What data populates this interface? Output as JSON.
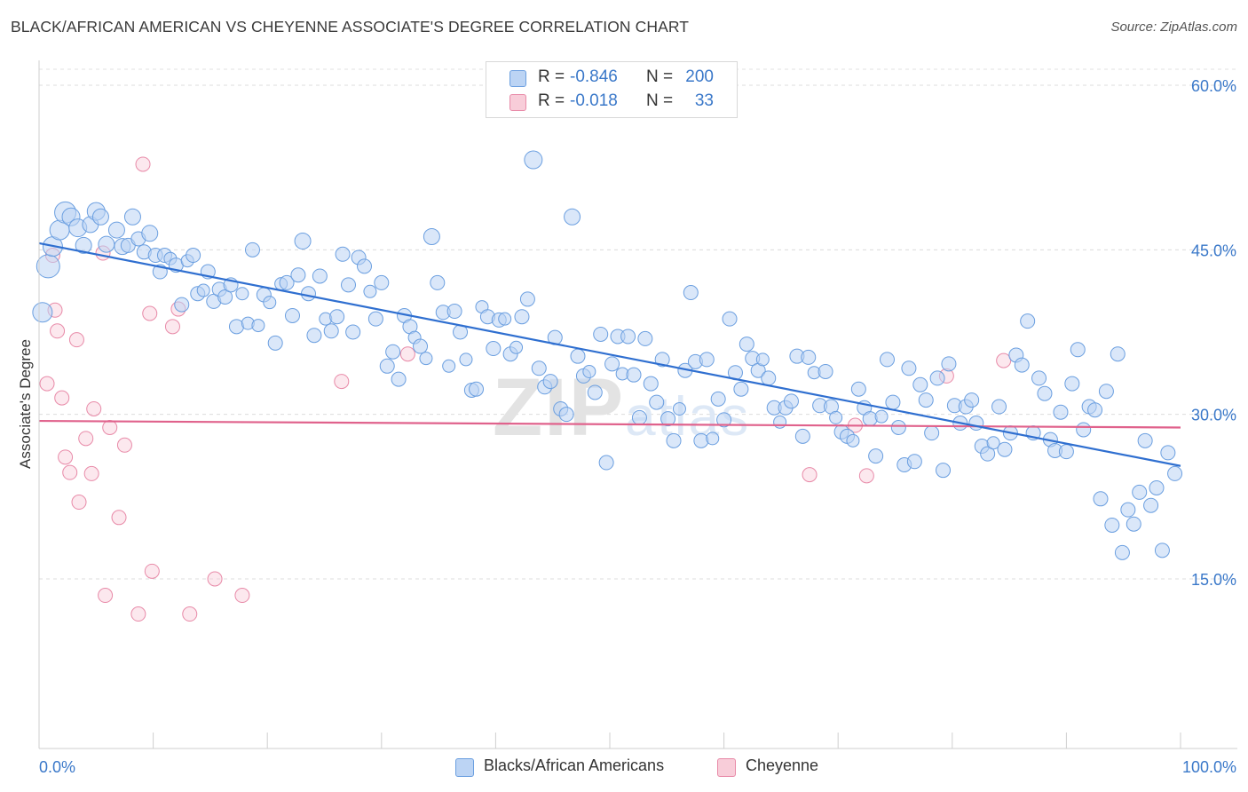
{
  "title": "BLACK/AFRICAN AMERICAN VS CHEYENNE ASSOCIATE'S DEGREE CORRELATION CHART",
  "source": "Source: ZipAtlas.com",
  "watermark": "ZIPatlas",
  "legend": {
    "r_label": "R =",
    "n_label": "N =",
    "rows": [
      {
        "r": "-0.846",
        "n": "200",
        "color": "#a9c8ef"
      },
      {
        "r": "-0.018",
        "n": "33",
        "color": "#f6b8cb"
      }
    ]
  },
  "bottom_legend": [
    "Blacks/African Americans",
    "Cheyenne"
  ],
  "colors": {
    "blue": "#6b9fe0",
    "blue_fill": "#bcd4f4",
    "blue_line": "#2f6fd0",
    "pink": "#e88aa8",
    "pink_fill": "#f8cdd9",
    "pink_line": "#e0628c",
    "axis_text": "#3a78c9"
  },
  "chart_data": {
    "type": "scatter",
    "title": "BLACK/AFRICAN AMERICAN VS CHEYENNE ASSOCIATE'S DEGREE CORRELATION CHART",
    "xlabel": "",
    "ylabel": "Associate's Degree",
    "xlim": [
      0,
      100
    ],
    "ylim": [
      0,
      62.5
    ],
    "x_tick_labels": [
      "0.0%",
      "100.0%"
    ],
    "y_ticks": [
      15,
      30,
      45,
      60
    ],
    "y_tick_labels": [
      "15.0%",
      "30.0%",
      "45.0%",
      "60.0%"
    ],
    "grid": "horizontal dashed",
    "legend_position": "top-center",
    "series": [
      {
        "name": "Blacks/African Americans",
        "r": -0.846,
        "n": 200,
        "trend": {
          "x": [
            0,
            100
          ],
          "y": [
            45.6,
            25.3
          ]
        },
        "points": [
          [
            0.3,
            39.3,
            11
          ],
          [
            0.8,
            43.5,
            13
          ],
          [
            1.2,
            45.3,
            11
          ],
          [
            1.8,
            46.8,
            11
          ],
          [
            2.3,
            48.4,
            12
          ],
          [
            2.8,
            48.0,
            10
          ],
          [
            3.4,
            47.0,
            10
          ],
          [
            3.9,
            45.4,
            9
          ],
          [
            4.5,
            47.3,
            9
          ],
          [
            5.0,
            48.5,
            10
          ],
          [
            5.4,
            48.0,
            9
          ],
          [
            5.9,
            45.5,
            9
          ],
          [
            6.8,
            46.8,
            9
          ],
          [
            7.3,
            45.3,
            9
          ],
          [
            7.8,
            45.4,
            8
          ],
          [
            8.2,
            48.0,
            9
          ],
          [
            8.7,
            46.0,
            8
          ],
          [
            9.2,
            44.8,
            8
          ],
          [
            9.7,
            46.5,
            9
          ],
          [
            10.2,
            44.5,
            8
          ],
          [
            10.6,
            43.0,
            8
          ],
          [
            11.0,
            44.5,
            8
          ],
          [
            11.5,
            44.2,
            7
          ],
          [
            12.0,
            43.6,
            8
          ],
          [
            12.5,
            40.0,
            8
          ],
          [
            13.0,
            44.0,
            7
          ],
          [
            13.5,
            44.5,
            8
          ],
          [
            13.9,
            41.0,
            8
          ],
          [
            14.4,
            41.3,
            7
          ],
          [
            14.8,
            43.0,
            8
          ],
          [
            15.3,
            40.3,
            8
          ],
          [
            15.8,
            41.4,
            8
          ],
          [
            16.3,
            40.7,
            8
          ],
          [
            16.8,
            41.8,
            8
          ],
          [
            17.3,
            38.0,
            8
          ],
          [
            17.8,
            41.0,
            7
          ],
          [
            18.3,
            38.3,
            7
          ],
          [
            18.7,
            45.0,
            8
          ],
          [
            19.2,
            38.1,
            7
          ],
          [
            19.7,
            40.9,
            8
          ],
          [
            20.2,
            40.2,
            7
          ],
          [
            20.7,
            36.5,
            8
          ],
          [
            21.2,
            41.9,
            7
          ],
          [
            21.7,
            42.0,
            8
          ],
          [
            22.2,
            39.0,
            8
          ],
          [
            22.7,
            42.7,
            8
          ],
          [
            23.1,
            45.8,
            9
          ],
          [
            23.6,
            41.0,
            8
          ],
          [
            24.1,
            37.2,
            8
          ],
          [
            24.6,
            42.6,
            8
          ],
          [
            25.1,
            38.7,
            7
          ],
          [
            25.6,
            37.6,
            8
          ],
          [
            26.1,
            38.9,
            8
          ],
          [
            26.6,
            44.6,
            8
          ],
          [
            27.1,
            41.8,
            8
          ],
          [
            27.5,
            37.5,
            8
          ],
          [
            28.0,
            44.3,
            8
          ],
          [
            28.5,
            43.5,
            8
          ],
          [
            29.0,
            41.2,
            7
          ],
          [
            29.5,
            38.7,
            8
          ],
          [
            30.0,
            42.0,
            8
          ],
          [
            30.5,
            34.4,
            8
          ],
          [
            31.0,
            35.7,
            8
          ],
          [
            31.5,
            33.2,
            8
          ],
          [
            32.0,
            39.0,
            8
          ],
          [
            32.5,
            38.0,
            8
          ],
          [
            32.9,
            37.0,
            7
          ],
          [
            33.4,
            36.2,
            8
          ],
          [
            33.9,
            35.1,
            7
          ],
          [
            34.4,
            46.2,
            9
          ],
          [
            34.9,
            42.0,
            8
          ],
          [
            35.4,
            39.3,
            8
          ],
          [
            35.9,
            34.4,
            7
          ],
          [
            36.4,
            39.4,
            8
          ],
          [
            36.9,
            37.5,
            8
          ],
          [
            37.4,
            35.0,
            7
          ],
          [
            37.9,
            32.2,
            8
          ],
          [
            38.3,
            32.3,
            8
          ],
          [
            38.8,
            39.8,
            7
          ],
          [
            39.3,
            38.9,
            8
          ],
          [
            39.8,
            36.0,
            8
          ],
          [
            40.3,
            38.6,
            8
          ],
          [
            40.8,
            38.7,
            7
          ],
          [
            41.3,
            35.5,
            8
          ],
          [
            41.8,
            36.1,
            7
          ],
          [
            42.3,
            38.9,
            8
          ],
          [
            42.8,
            40.5,
            8
          ],
          [
            43.3,
            53.2,
            10
          ],
          [
            43.8,
            34.2,
            8
          ],
          [
            44.3,
            32.5,
            8
          ],
          [
            44.8,
            33.0,
            8
          ],
          [
            45.2,
            37.0,
            8
          ],
          [
            45.7,
            30.5,
            8
          ],
          [
            46.2,
            30.0,
            8
          ],
          [
            46.7,
            48.0,
            9
          ],
          [
            47.2,
            35.3,
            8
          ],
          [
            47.7,
            33.5,
            8
          ],
          [
            48.2,
            33.9,
            7
          ],
          [
            48.7,
            32.0,
            8
          ],
          [
            49.2,
            37.3,
            8
          ],
          [
            49.7,
            25.6,
            8
          ],
          [
            50.2,
            34.6,
            8
          ],
          [
            50.7,
            37.1,
            8
          ],
          [
            51.1,
            33.7,
            7
          ],
          [
            51.6,
            37.1,
            8
          ],
          [
            52.1,
            33.6,
            8
          ],
          [
            52.6,
            29.7,
            8
          ],
          [
            53.1,
            36.9,
            8
          ],
          [
            53.6,
            32.8,
            8
          ],
          [
            54.1,
            31.1,
            8
          ],
          [
            54.6,
            35.0,
            8
          ],
          [
            55.1,
            29.6,
            8
          ],
          [
            55.6,
            27.6,
            8
          ],
          [
            56.1,
            30.5,
            7
          ],
          [
            56.6,
            34.0,
            8
          ],
          [
            57.1,
            41.1,
            8
          ],
          [
            57.5,
            34.8,
            8
          ],
          [
            58.0,
            27.6,
            8
          ],
          [
            58.5,
            35.0,
            8
          ],
          [
            59.0,
            27.8,
            7
          ],
          [
            59.5,
            31.4,
            8
          ],
          [
            60.0,
            29.5,
            8
          ],
          [
            60.5,
            38.7,
            8
          ],
          [
            61.0,
            33.8,
            8
          ],
          [
            61.5,
            32.3,
            8
          ],
          [
            62.0,
            36.4,
            8
          ],
          [
            62.5,
            35.1,
            8
          ],
          [
            63.0,
            34.0,
            8
          ],
          [
            63.4,
            35.0,
            7
          ],
          [
            63.9,
            33.3,
            8
          ],
          [
            64.4,
            30.6,
            8
          ],
          [
            64.9,
            29.3,
            7
          ],
          [
            65.4,
            30.6,
            8
          ],
          [
            65.9,
            31.2,
            8
          ],
          [
            66.4,
            35.3,
            8
          ],
          [
            66.9,
            28.0,
            8
          ],
          [
            67.4,
            35.2,
            8
          ],
          [
            67.9,
            33.8,
            7
          ],
          [
            68.4,
            30.8,
            8
          ],
          [
            68.9,
            33.9,
            8
          ],
          [
            69.4,
            30.7,
            8
          ],
          [
            69.8,
            29.7,
            7
          ],
          [
            70.3,
            28.4,
            8
          ],
          [
            70.8,
            28.0,
            8
          ],
          [
            71.3,
            27.6,
            7
          ],
          [
            71.8,
            32.3,
            8
          ],
          [
            72.3,
            30.6,
            8
          ],
          [
            72.8,
            29.6,
            8
          ],
          [
            73.3,
            26.2,
            8
          ],
          [
            73.8,
            29.8,
            7
          ],
          [
            74.3,
            35.0,
            8
          ],
          [
            74.8,
            31.1,
            8
          ],
          [
            75.3,
            28.8,
            8
          ],
          [
            75.8,
            25.4,
            8
          ],
          [
            76.2,
            34.2,
            8
          ],
          [
            76.7,
            25.7,
            8
          ],
          [
            77.2,
            32.7,
            8
          ],
          [
            77.7,
            31.3,
            8
          ],
          [
            78.2,
            28.3,
            8
          ],
          [
            78.7,
            33.3,
            8
          ],
          [
            79.2,
            24.9,
            8
          ],
          [
            79.7,
            34.6,
            8
          ],
          [
            80.2,
            30.8,
            8
          ],
          [
            80.7,
            29.2,
            8
          ],
          [
            81.2,
            30.7,
            8
          ],
          [
            81.7,
            31.3,
            8
          ],
          [
            82.1,
            29.2,
            8
          ],
          [
            82.6,
            27.1,
            8
          ],
          [
            83.1,
            26.4,
            8
          ],
          [
            83.6,
            27.4,
            7
          ],
          [
            84.1,
            30.7,
            8
          ],
          [
            84.6,
            26.8,
            8
          ],
          [
            85.1,
            28.3,
            8
          ],
          [
            85.6,
            35.4,
            8
          ],
          [
            86.1,
            34.5,
            8
          ],
          [
            86.6,
            38.5,
            8
          ],
          [
            87.1,
            28.3,
            8
          ],
          [
            87.6,
            33.3,
            8
          ],
          [
            88.1,
            31.9,
            8
          ],
          [
            88.6,
            27.7,
            8
          ],
          [
            89.0,
            26.7,
            8
          ],
          [
            89.5,
            30.2,
            8
          ],
          [
            90.0,
            26.6,
            8
          ],
          [
            90.5,
            32.8,
            8
          ],
          [
            91.0,
            35.9,
            8
          ],
          [
            91.5,
            28.6,
            8
          ],
          [
            92.0,
            30.7,
            8
          ],
          [
            92.5,
            30.4,
            8
          ],
          [
            93.0,
            22.3,
            8
          ],
          [
            93.5,
            32.1,
            8
          ],
          [
            94.0,
            19.9,
            8
          ],
          [
            94.5,
            35.5,
            8
          ],
          [
            94.9,
            17.4,
            8
          ],
          [
            95.4,
            21.3,
            8
          ],
          [
            95.9,
            20.0,
            8
          ],
          [
            96.4,
            22.9,
            8
          ],
          [
            96.9,
            27.6,
            8
          ],
          [
            97.4,
            21.7,
            8
          ],
          [
            97.9,
            23.3,
            8
          ],
          [
            98.4,
            17.6,
            8
          ],
          [
            98.9,
            26.5,
            8
          ],
          [
            99.5,
            24.6,
            8
          ]
        ]
      },
      {
        "name": "Cheyenne",
        "r": -0.018,
        "n": 33,
        "trend": {
          "x": [
            0,
            100
          ],
          "y": [
            29.4,
            28.8
          ]
        },
        "points": [
          [
            0.7,
            32.8,
            8
          ],
          [
            1.2,
            44.5,
            8
          ],
          [
            1.4,
            39.5,
            8
          ],
          [
            1.6,
            37.6,
            8
          ],
          [
            2.0,
            31.5,
            8
          ],
          [
            2.3,
            26.1,
            8
          ],
          [
            2.7,
            24.7,
            8
          ],
          [
            3.3,
            36.8,
            8
          ],
          [
            3.5,
            22.0,
            8
          ],
          [
            4.1,
            27.8,
            8
          ],
          [
            4.6,
            24.6,
            8
          ],
          [
            4.8,
            30.5,
            8
          ],
          [
            5.6,
            44.7,
            8
          ],
          [
            6.2,
            28.8,
            8
          ],
          [
            7.0,
            20.6,
            8
          ],
          [
            7.5,
            27.2,
            8
          ],
          [
            5.8,
            13.5,
            8
          ],
          [
            8.7,
            11.8,
            8
          ],
          [
            9.1,
            52.8,
            8
          ],
          [
            9.7,
            39.2,
            8
          ],
          [
            9.9,
            15.7,
            8
          ],
          [
            11.7,
            38.0,
            8
          ],
          [
            12.2,
            39.6,
            8
          ],
          [
            13.2,
            11.8,
            8
          ],
          [
            15.4,
            15.0,
            8
          ],
          [
            17.8,
            13.5,
            8
          ],
          [
            26.5,
            33.0,
            8
          ],
          [
            32.3,
            35.5,
            8
          ],
          [
            67.5,
            24.5,
            8
          ],
          [
            71.5,
            29.0,
            8
          ],
          [
            72.5,
            24.4,
            8
          ],
          [
            79.5,
            33.5,
            8
          ],
          [
            84.5,
            34.9,
            8
          ]
        ]
      }
    ]
  }
}
